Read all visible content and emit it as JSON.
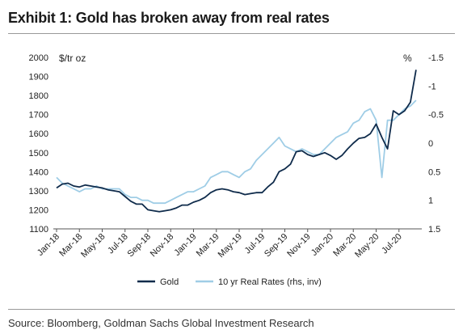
{
  "header": {
    "title": "Exhibit 1: Gold has broken away from real rates"
  },
  "footer": {
    "source": "Source: Bloomberg, Goldman Sachs Global Investment Research"
  },
  "colors": {
    "gold": "#0f2b4b",
    "real_rates": "#9fcde6"
  },
  "chart_data": {
    "type": "line",
    "title": "",
    "left_axis": {
      "unit_label": "$/tr oz",
      "ylim": [
        1100,
        2000
      ],
      "ticks": [
        "1100",
        "1200",
        "1300",
        "1400",
        "1500",
        "1600",
        "1700",
        "1800",
        "1900",
        "2000"
      ]
    },
    "right_axis": {
      "unit_label": "%",
      "inverted": true,
      "ylim": [
        1.5,
        -1.5
      ],
      "ticks": [
        "-1.5",
        "-1",
        "-0.5",
        "0",
        "0.5",
        "1",
        "1.5"
      ]
    },
    "x_ticks": [
      "Jan-18",
      "Mar-18",
      "May-18",
      "Jul-18",
      "Sep-18",
      "Nov-18",
      "Jan-19",
      "Mar-19",
      "May-19",
      "Jul-19",
      "Sep-19",
      "Nov-19",
      "Jan-20",
      "Mar-20",
      "May-20",
      "Jul-20"
    ],
    "legend_position": "bottom",
    "series": [
      {
        "name": "Gold",
        "axis": "left",
        "x": [
          0,
          0.5,
          1,
          1.5,
          2,
          2.5,
          3,
          3.5,
          4,
          4.5,
          5,
          5.5,
          6,
          6.5,
          7,
          7.5,
          8,
          8.5,
          9,
          9.5,
          10,
          10.5,
          11,
          11.5,
          12,
          12.5,
          13,
          13.5,
          14,
          14.5,
          15,
          15.5,
          16,
          16.5,
          17,
          17.5,
          18,
          18.5,
          19,
          19.5,
          20,
          20.5,
          21,
          21.5,
          22,
          22.5,
          23,
          23.5,
          24,
          24.5,
          25,
          25.5,
          26,
          26.5,
          27,
          27.5,
          28,
          28.5,
          29,
          29.5,
          30,
          30.5,
          31,
          31.5
        ],
        "values": [
          1315,
          1335,
          1340,
          1325,
          1320,
          1330,
          1325,
          1320,
          1315,
          1305,
          1300,
          1295,
          1270,
          1245,
          1230,
          1230,
          1200,
          1195,
          1190,
          1195,
          1200,
          1210,
          1225,
          1225,
          1240,
          1250,
          1265,
          1290,
          1305,
          1310,
          1305,
          1295,
          1290,
          1280,
          1285,
          1290,
          1290,
          1320,
          1345,
          1400,
          1415,
          1440,
          1505,
          1510,
          1490,
          1480,
          1490,
          1500,
          1485,
          1465,
          1485,
          1520,
          1550,
          1575,
          1580,
          1600,
          1650,
          1580,
          1520,
          1720,
          1700,
          1720,
          1765,
          1935
        ]
      },
      {
        "name": "10 yr Real Rates (rhs, inv)",
        "axis": "right",
        "x": [
          0,
          0.5,
          1,
          1.5,
          2,
          2.5,
          3,
          3.5,
          4,
          4.5,
          5,
          5.5,
          6,
          6.5,
          7,
          7.5,
          8,
          8.5,
          9,
          9.5,
          10,
          10.5,
          11,
          11.5,
          12,
          12.5,
          13,
          13.5,
          14,
          14.5,
          15,
          15.5,
          16,
          16.5,
          17,
          17.5,
          18,
          18.5,
          19,
          19.5,
          20,
          20.5,
          21,
          21.5,
          22,
          22.5,
          23,
          23.5,
          24,
          24.5,
          25,
          25.5,
          26,
          26.5,
          27,
          27.5,
          28,
          28.5,
          29,
          29.5,
          30,
          30.5,
          31,
          31.5
        ],
        "values": [
          0.6,
          0.7,
          0.75,
          0.8,
          0.85,
          0.8,
          0.8,
          0.75,
          0.8,
          0.8,
          0.8,
          0.8,
          0.9,
          0.95,
          0.95,
          1.0,
          1.0,
          1.05,
          1.05,
          1.05,
          1.0,
          0.95,
          0.9,
          0.85,
          0.85,
          0.8,
          0.75,
          0.6,
          0.55,
          0.5,
          0.5,
          0.55,
          0.6,
          0.5,
          0.45,
          0.3,
          0.2,
          0.1,
          0.0,
          -0.1,
          0.05,
          0.1,
          0.15,
          0.1,
          0.15,
          0.2,
          0.2,
          0.1,
          0.0,
          -0.1,
          -0.15,
          -0.2,
          -0.35,
          -0.4,
          -0.55,
          -0.6,
          -0.4,
          0.6,
          -0.4,
          -0.4,
          -0.5,
          -0.6,
          -0.65,
          -0.75
        ]
      }
    ]
  }
}
